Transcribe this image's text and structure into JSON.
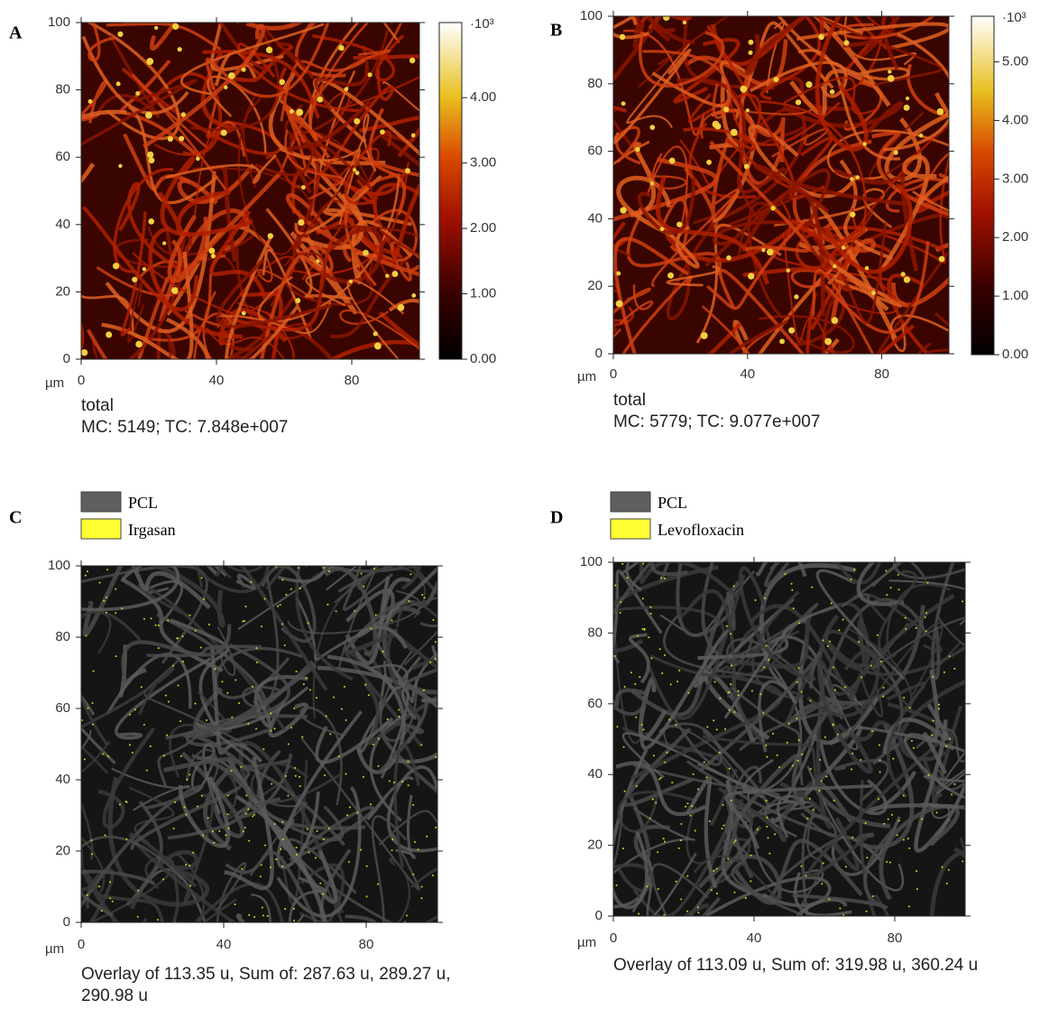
{
  "panels": [
    {
      "label": "A",
      "type": "intensity-map",
      "x_unit": "µm",
      "xlim": [
        0,
        100
      ],
      "ylim": [
        0,
        100
      ],
      "xticks": [
        0,
        40,
        80
      ],
      "yticks": [
        0,
        20,
        40,
        60,
        80,
        100
      ],
      "colorbar": {
        "exponent_label": "·10³",
        "lim": [
          0,
          5.149
        ],
        "ticks": [
          {
            "value": 0,
            "label": "0.00"
          },
          {
            "value": 1,
            "label": "1.00"
          },
          {
            "value": 2,
            "label": "2.00"
          },
          {
            "value": 3,
            "label": "3.00"
          },
          {
            "value": 4,
            "label": "4.00"
          }
        ]
      },
      "caption": [
        "total",
        "MC:  5149; TC: 7.848e+007"
      ]
    },
    {
      "label": "B",
      "type": "intensity-map",
      "x_unit": "µm",
      "xlim": [
        0,
        100
      ],
      "ylim": [
        0,
        100
      ],
      "xticks": [
        0,
        40,
        80
      ],
      "yticks": [
        0,
        20,
        40,
        60,
        80,
        100
      ],
      "colorbar": {
        "exponent_label": "·10³",
        "lim": [
          0,
          5.779
        ],
        "ticks": [
          {
            "value": 0,
            "label": "0.00"
          },
          {
            "value": 1,
            "label": "1.00"
          },
          {
            "value": 2,
            "label": "2.00"
          },
          {
            "value": 3,
            "label": "3.00"
          },
          {
            "value": 4,
            "label": "4.00"
          },
          {
            "value": 5,
            "label": "5.00"
          }
        ]
      },
      "caption": [
        "total",
        "MC:  5779; TC: 9.077e+007"
      ]
    },
    {
      "label": "C",
      "type": "overlay",
      "x_unit": "µm",
      "xlim": [
        0,
        100
      ],
      "ylim": [
        0,
        100
      ],
      "xticks": [
        0,
        40,
        80
      ],
      "yticks": [
        0,
        20,
        40,
        60,
        80,
        100
      ],
      "legend": [
        {
          "name": "PCL",
          "color": "#5f5f5f"
        },
        {
          "name": "Irgasan",
          "color": "#ffff33"
        }
      ],
      "caption": [
        "Overlay of 113.35 u, Sum of: 287.63 u, 289.27 u,",
        "290.98 u"
      ]
    },
    {
      "label": "D",
      "type": "overlay",
      "x_unit": "µm",
      "xlim": [
        0,
        100
      ],
      "ylim": [
        0,
        100
      ],
      "xticks": [
        0,
        40,
        80
      ],
      "yticks": [
        0,
        20,
        40,
        60,
        80,
        100
      ],
      "legend": [
        {
          "name": "PCL",
          "color": "#5f5f5f"
        },
        {
          "name": "Levofloxacin",
          "color": "#ffff33"
        }
      ],
      "caption": [
        "Overlay of 113.09 u, Sum of: 319.98 u, 360.24 u"
      ]
    }
  ]
}
